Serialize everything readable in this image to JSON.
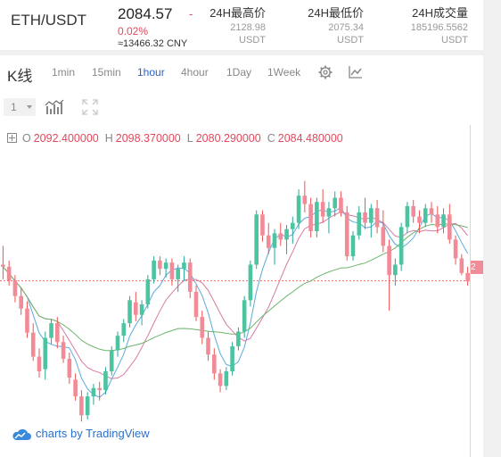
{
  "ticker": {
    "pair": "ETH/USDT",
    "last": "2084.57",
    "dash": "-",
    "change_pct": "0.02%",
    "cny": "≈13466.32 CNY",
    "high_label": "24H最高价",
    "high_value": "2128.98",
    "high_unit": "USDT",
    "low_label": "24H最低价",
    "low_value": "2075.34",
    "low_unit": "USDT",
    "vol_label": "24H成交量",
    "vol_value": "185196.5562",
    "vol_unit": "USDT"
  },
  "toolbar": {
    "title": "K线",
    "timeframes": [
      "1min",
      "15min",
      "1hour",
      "4hour",
      "1Day",
      "1Week"
    ],
    "active": "1hour",
    "icons": [
      "gear-icon",
      "line-chart-icon"
    ]
  },
  "row2": {
    "select_value": "1",
    "icons": [
      "indicators-icon",
      "fullscreen-icon"
    ]
  },
  "ohlc": {
    "o_label": "O",
    "o": "2092.400000",
    "h_label": "H",
    "h": "2098.370000",
    "l_label": "L",
    "l": "2080.290000",
    "c_label": "C",
    "c": "2084.480000"
  },
  "watermark": "charts by TradingView",
  "price_tag": "2",
  "colors": {
    "up": "#26a69a",
    "down": "#ef5350",
    "accent": "#2a63c9",
    "ma_blue": "#5aaadc",
    "ma_green": "#6cb56c",
    "ma_pink": "#d77aa7"
  },
  "chart_data": {
    "type": "candlestick",
    "candles": [
      [
        2100,
        2118,
        2086,
        2098
      ],
      [
        2098,
        2104,
        2080,
        2085
      ],
      [
        2085,
        2090,
        2064,
        2070
      ],
      [
        2070,
        2078,
        2052,
        2058
      ],
      [
        2058,
        2065,
        2030,
        2035
      ],
      [
        2035,
        2044,
        2008,
        2012
      ],
      [
        2012,
        2020,
        1992,
        1998
      ],
      [
        2000,
        2036,
        1990,
        2030
      ],
      [
        2030,
        2048,
        2024,
        2044
      ],
      [
        2044,
        2050,
        2020,
        2026
      ],
      [
        2026,
        2032,
        2006,
        2010
      ],
      [
        2010,
        2016,
        1986,
        1992
      ],
      [
        1990,
        1996,
        1970,
        1974
      ],
      [
        1974,
        1980,
        1950,
        1956
      ],
      [
        1956,
        1978,
        1952,
        1974
      ],
      [
        1974,
        1986,
        1966,
        1982
      ],
      [
        1982,
        1988,
        1970,
        1980
      ],
      [
        1980,
        2002,
        1976,
        1998
      ],
      [
        1998,
        2022,
        1994,
        2018
      ],
      [
        2018,
        2036,
        2012,
        2032
      ],
      [
        2032,
        2048,
        2026,
        2044
      ],
      [
        2044,
        2070,
        2040,
        2066
      ],
      [
        2064,
        2074,
        2046,
        2052
      ],
      [
        2052,
        2066,
        2042,
        2062
      ],
      [
        2062,
        2090,
        2058,
        2086
      ],
      [
        2086,
        2108,
        2082,
        2104
      ],
      [
        2104,
        2108,
        2090,
        2096
      ],
      [
        2096,
        2106,
        2088,
        2102
      ],
      [
        2102,
        2106,
        2080,
        2086
      ],
      [
        2086,
        2100,
        2074,
        2096
      ],
      [
        2096,
        2108,
        2084,
        2102
      ],
      [
        2102,
        2106,
        2068,
        2074
      ],
      [
        2074,
        2080,
        2046,
        2050
      ],
      [
        2050,
        2056,
        2024,
        2030
      ],
      [
        2030,
        2036,
        2008,
        2014
      ],
      [
        2014,
        2020,
        1990,
        1996
      ],
      [
        1996,
        2000,
        1978,
        1984
      ],
      [
        1984,
        2002,
        1980,
        1998
      ],
      [
        1998,
        2026,
        1994,
        2022
      ],
      [
        2022,
        2040,
        2018,
        2036
      ],
      [
        2036,
        2070,
        2030,
        2066
      ],
      [
        2066,
        2104,
        2060,
        2100
      ],
      [
        2100,
        2152,
        2096,
        2148
      ],
      [
        2148,
        2152,
        2122,
        2128
      ],
      [
        2128,
        2140,
        2110,
        2116
      ],
      [
        2116,
        2134,
        2100,
        2130
      ],
      [
        2130,
        2140,
        2118,
        2124
      ],
      [
        2124,
        2138,
        2110,
        2134
      ],
      [
        2134,
        2146,
        2120,
        2140
      ],
      [
        2140,
        2172,
        2134,
        2166
      ],
      [
        2166,
        2180,
        2150,
        2158
      ],
      [
        2158,
        2164,
        2126,
        2132
      ],
      [
        2132,
        2164,
        2126,
        2160
      ],
      [
        2160,
        2172,
        2140,
        2146
      ],
      [
        2146,
        2160,
        2130,
        2154
      ],
      [
        2154,
        2170,
        2146,
        2164
      ],
      [
        2164,
        2170,
        2146,
        2150
      ],
      [
        2150,
        2156,
        2104,
        2108
      ],
      [
        2108,
        2132,
        2104,
        2128
      ],
      [
        2128,
        2156,
        2124,
        2150
      ],
      [
        2150,
        2164,
        2134,
        2140
      ],
      [
        2140,
        2158,
        2126,
        2154
      ],
      [
        2154,
        2162,
        2130,
        2136
      ],
      [
        2136,
        2152,
        2112,
        2118
      ],
      [
        2118,
        2124,
        2056,
        2090
      ],
      [
        2090,
        2106,
        2080,
        2100
      ],
      [
        2100,
        2140,
        2094,
        2136
      ],
      [
        2136,
        2160,
        2130,
        2156
      ],
      [
        2156,
        2162,
        2140,
        2146
      ],
      [
        2146,
        2152,
        2130,
        2140
      ],
      [
        2140,
        2158,
        2136,
        2154
      ],
      [
        2154,
        2160,
        2140,
        2148
      ],
      [
        2148,
        2156,
        2130,
        2136
      ],
      [
        2136,
        2154,
        2130,
        2148
      ],
      [
        2148,
        2158,
        2120,
        2124
      ],
      [
        2124,
        2128,
        2100,
        2106
      ],
      [
        2106,
        2110,
        2090,
        2092
      ],
      [
        2092,
        2098,
        2080,
        2084
      ]
    ],
    "ma_periods": [
      5,
      10,
      30
    ],
    "last_close": 2084.48,
    "ylim": [
      1928,
      2208
    ]
  }
}
